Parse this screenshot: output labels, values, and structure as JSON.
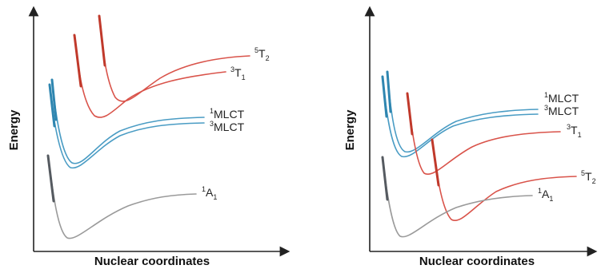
{
  "colors": {
    "quintet": "#d9534a",
    "triplet_dark": "#c0392b",
    "mlct": "#4a9cc4",
    "mlct_dark": "#2f86b0",
    "ground": "#9a9a9a",
    "ground_dark": "#555a60",
    "axis": "#222222"
  },
  "panels": [
    {
      "ylabel": "Energy",
      "xlabel": "Nuclear coordinates",
      "states": [
        {
          "base": "T",
          "sup": "5",
          "sub": "2"
        },
        {
          "base": "T",
          "sup": "3",
          "sub": "1"
        },
        {
          "base": "MLCT",
          "sup": "1",
          "sub": ""
        },
        {
          "base": "MLCT",
          "sup": "3",
          "sub": ""
        },
        {
          "base": "A",
          "sup": "1",
          "sub": "1"
        }
      ]
    },
    {
      "ylabel": "Energy",
      "xlabel": "Nuclear coordinates",
      "states": [
        {
          "base": "MLCT",
          "sup": "1",
          "sub": ""
        },
        {
          "base": "MLCT",
          "sup": "3",
          "sub": ""
        },
        {
          "base": "T",
          "sup": "3",
          "sub": "1"
        },
        {
          "base": "T",
          "sup": "5",
          "sub": "2"
        },
        {
          "base": "A",
          "sup": "1",
          "sub": "1"
        }
      ]
    }
  ]
}
